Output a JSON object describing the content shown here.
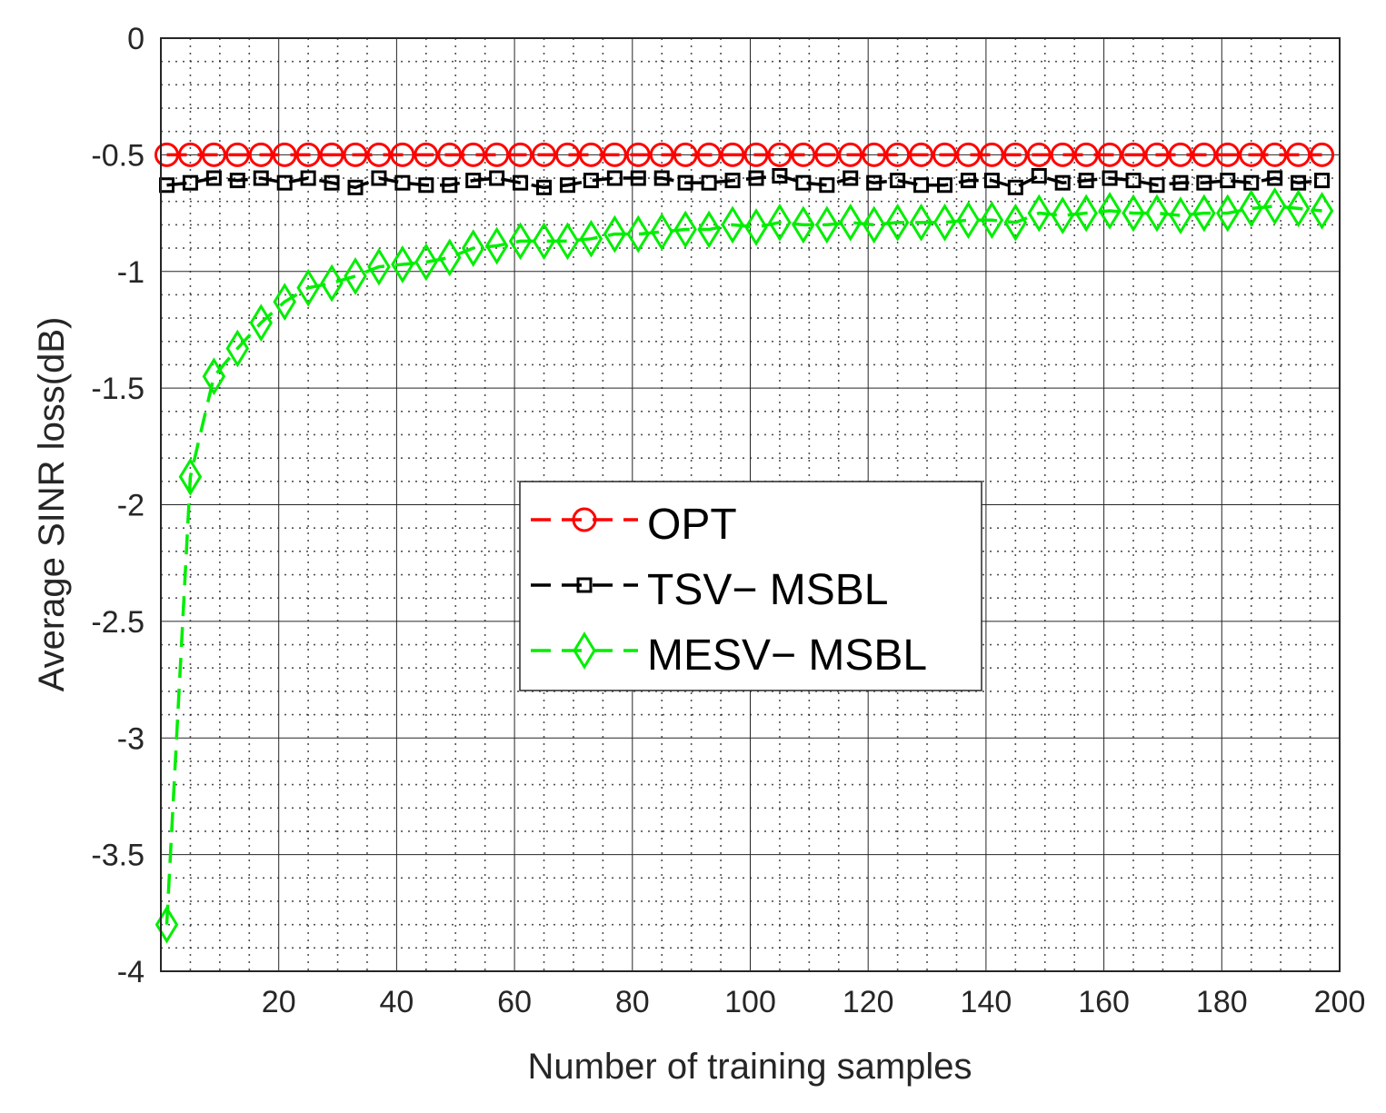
{
  "chart_data": {
    "type": "line",
    "title": "",
    "xlabel": "Number of training samples",
    "ylabel": "Average SINR loss(dB)",
    "xlim": [
      0,
      200
    ],
    "ylim": [
      -4,
      0
    ],
    "xticks": [
      20,
      40,
      60,
      80,
      100,
      120,
      140,
      160,
      180,
      200
    ],
    "xtick_labels": [
      "20",
      "40",
      "60",
      "80",
      "100",
      "120",
      "140",
      "160",
      "180",
      "200"
    ],
    "yticks": [
      0,
      -0.5,
      -1,
      -1.5,
      -2,
      -2.5,
      -3,
      -3.5,
      -4
    ],
    "ytick_labels": [
      "0",
      "-0.5",
      "-1",
      "-1.5",
      "-2",
      "-2.5",
      "-3",
      "-3.5",
      "-4"
    ],
    "grid": true,
    "minor_grid": true,
    "legend_position": "center",
    "x": [
      1,
      5,
      9,
      13,
      17,
      21,
      25,
      29,
      33,
      37,
      41,
      45,
      49,
      53,
      57,
      61,
      65,
      69,
      73,
      77,
      81,
      85,
      89,
      93,
      97,
      101,
      105,
      109,
      113,
      117,
      121,
      125,
      129,
      133,
      137,
      141,
      145,
      149,
      153,
      157,
      161,
      165,
      169,
      173,
      177,
      181,
      185,
      189,
      193,
      197
    ],
    "series": [
      {
        "name": "OPT",
        "legend_label": "OPT",
        "color": "#ff0000",
        "marker": "circle",
        "line_style": "dashed",
        "values": [
          -0.5,
          -0.5,
          -0.5,
          -0.5,
          -0.5,
          -0.5,
          -0.5,
          -0.5,
          -0.5,
          -0.5,
          -0.5,
          -0.5,
          -0.5,
          -0.5,
          -0.5,
          -0.5,
          -0.5,
          -0.5,
          -0.5,
          -0.5,
          -0.5,
          -0.5,
          -0.5,
          -0.5,
          -0.5,
          -0.5,
          -0.5,
          -0.5,
          -0.5,
          -0.5,
          -0.5,
          -0.5,
          -0.5,
          -0.5,
          -0.5,
          -0.5,
          -0.5,
          -0.5,
          -0.5,
          -0.5,
          -0.5,
          -0.5,
          -0.5,
          -0.5,
          -0.5,
          -0.5,
          -0.5,
          -0.5,
          -0.5,
          -0.5
        ]
      },
      {
        "name": "TSV-MSBL",
        "legend_label": "TSV− MSBL",
        "color": "#000000",
        "marker": "square",
        "line_style": "dashed",
        "values": [
          -0.63,
          -0.62,
          -0.6,
          -0.61,
          -0.6,
          -0.62,
          -0.6,
          -0.62,
          -0.64,
          -0.6,
          -0.62,
          -0.63,
          -0.63,
          -0.61,
          -0.6,
          -0.62,
          -0.64,
          -0.63,
          -0.61,
          -0.6,
          -0.6,
          -0.6,
          -0.62,
          -0.62,
          -0.61,
          -0.6,
          -0.59,
          -0.62,
          -0.63,
          -0.6,
          -0.62,
          -0.61,
          -0.63,
          -0.63,
          -0.61,
          -0.61,
          -0.64,
          -0.59,
          -0.62,
          -0.61,
          -0.6,
          -0.61,
          -0.63,
          -0.62,
          -0.62,
          -0.61,
          -0.62,
          -0.6,
          -0.62,
          -0.61
        ]
      },
      {
        "name": "MESV-MSBL",
        "legend_label": "MESV− MSBL",
        "color": "#00ee00",
        "marker": "diamond",
        "line_style": "dashed",
        "values": [
          -3.8,
          -1.88,
          -1.45,
          -1.33,
          -1.22,
          -1.13,
          -1.07,
          -1.05,
          -1.02,
          -0.98,
          -0.97,
          -0.96,
          -0.94,
          -0.9,
          -0.89,
          -0.87,
          -0.87,
          -0.87,
          -0.86,
          -0.84,
          -0.84,
          -0.83,
          -0.82,
          -0.82,
          -0.8,
          -0.81,
          -0.79,
          -0.8,
          -0.8,
          -0.79,
          -0.8,
          -0.79,
          -0.79,
          -0.79,
          -0.78,
          -0.78,
          -0.79,
          -0.75,
          -0.76,
          -0.75,
          -0.74,
          -0.75,
          -0.75,
          -0.76,
          -0.75,
          -0.75,
          -0.73,
          -0.72,
          -0.73,
          -0.74
        ]
      }
    ]
  }
}
